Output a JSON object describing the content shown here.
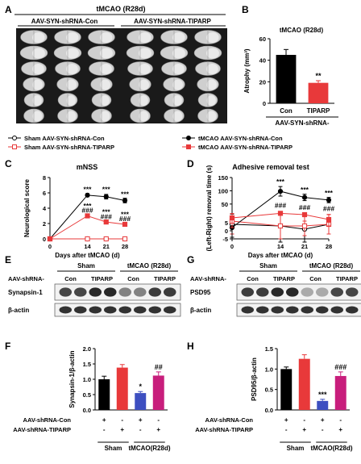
{
  "panels": {
    "A": {
      "letter": "A",
      "title": "tMCAO (R28d)",
      "groups": [
        "AAV-SYN-shRNA-Con",
        "AAV-SYN-shRNA-TIPARP"
      ],
      "rows": 6,
      "cols_per_group": 3
    },
    "E": {
      "letter": "E",
      "row_header": "AAV-shRNA-",
      "groups": [
        "Sham",
        "tMCAO (R28d)"
      ],
      "lanes": [
        "Con",
        "TIPARP",
        "Con",
        "TIPARP"
      ],
      "bands": [
        "Synapsin-1",
        "β-actin"
      ]
    },
    "G": {
      "letter": "G",
      "row_header": "AAV-shRNA-",
      "groups": [
        "Sham",
        "tMCAO (R28d)"
      ],
      "lanes": [
        "Con",
        "TIPARP",
        "Con",
        "TIPARP"
      ],
      "bands": [
        "PSD95",
        "β-actin"
      ]
    }
  },
  "legend": {
    "items": [
      {
        "label": "Sham AAV-SYN-shRNA-Con",
        "color": "#000000",
        "marker": "open-circle"
      },
      {
        "label": "tMCAO AAV-SYN-shRNA-Con",
        "color": "#000000",
        "marker": "filled-circle"
      },
      {
        "label": "Sham AAV-SYN-shRNA-TIPARP",
        "color": "#e8393a",
        "marker": "open-square"
      },
      {
        "label": "tMCAO AAV-SYN-shRNA-TIPARP",
        "color": "#e8393a",
        "marker": "filled-square"
      }
    ]
  },
  "chart_data": [
    {
      "id": "B",
      "letter": "B",
      "type": "bar",
      "title": "tMCAO (R28d)",
      "ylabel": "Atrophy (mm³)",
      "categories": [
        "Con",
        "TIPARP"
      ],
      "values": [
        45,
        19
      ],
      "errors": [
        5,
        2
      ],
      "colors": [
        "#000000",
        "#e8393a"
      ],
      "ylim": [
        0,
        60
      ],
      "yticks": [
        0,
        20,
        40,
        60
      ],
      "group_label": "AAV-SYN-shRNA-",
      "annotations": [
        {
          "category": "TIPARP",
          "text": "**"
        }
      ]
    },
    {
      "id": "C",
      "letter": "C",
      "type": "line",
      "title": "mNSS",
      "ylabel": "Neurological score",
      "xlabel": "Days after tMCAO (d)",
      "x": [
        0,
        14,
        21,
        28
      ],
      "xlim": [
        0,
        28
      ],
      "ylim": [
        0,
        8
      ],
      "yticks": [
        0,
        2,
        4,
        6,
        8
      ],
      "series": [
        {
          "values": [
            0,
            0,
            0,
            0
          ],
          "errors": [
            0,
            0,
            0,
            0
          ],
          "color": "#000000",
          "marker": "open-circle"
        },
        {
          "values": [
            0,
            0,
            0,
            0
          ],
          "errors": [
            0,
            0,
            0,
            0
          ],
          "color": "#e8393a",
          "marker": "open-square"
        },
        {
          "values": [
            0,
            5.7,
            5.5,
            5.0
          ],
          "errors": [
            0,
            0.2,
            0.3,
            0.3
          ],
          "color": "#000000",
          "marker": "filled-circle"
        },
        {
          "values": [
            0,
            3.0,
            2.2,
            1.9
          ],
          "errors": [
            0,
            0.2,
            0.2,
            0.2
          ],
          "color": "#e8393a",
          "marker": "filled-square"
        }
      ],
      "annotations": [
        {
          "x": 14,
          "y": 6.15,
          "text": "***"
        },
        {
          "x": 21,
          "y": 6.15,
          "text": "***"
        },
        {
          "x": 28,
          "y": 5.55,
          "text": "***"
        },
        {
          "x": 14,
          "y": 4.0,
          "text": "***"
        },
        {
          "x": 14,
          "y": 3.4,
          "text": "###"
        },
        {
          "x": 21,
          "y": 3.2,
          "text": "***"
        },
        {
          "x": 21,
          "y": 2.6,
          "text": "###"
        },
        {
          "x": 28,
          "y": 2.9,
          "text": "***"
        },
        {
          "x": 28,
          "y": 2.3,
          "text": "###"
        }
      ]
    },
    {
      "id": "D",
      "letter": "D",
      "type": "line",
      "title": "Adhesive removal test",
      "ylabel": "(Left-Right) removal time (s)",
      "xlabel": "Days after tMCAO (d)",
      "x": [
        0,
        14,
        21,
        28
      ],
      "xlim": [
        0,
        28
      ],
      "ylim": [
        -5,
        150
      ],
      "yticks": [
        -5,
        0,
        5,
        50,
        100,
        150
      ],
      "ytick_labels": [
        "-5",
        "0",
        "5",
        "50",
        "100",
        "150"
      ],
      "series": [
        {
          "values": [
            4,
            3,
            1,
            4
          ],
          "errors": [
            8,
            10,
            8,
            6
          ],
          "color": "#000000",
          "marker": "open-circle"
        },
        {
          "values": [
            6,
            3,
            3,
            4
          ],
          "errors": [
            8,
            8,
            6,
            6
          ],
          "color": "#e8393a",
          "marker": "open-square"
        },
        {
          "values": [
            2,
            98,
            75,
            65
          ],
          "errors": [
            6,
            18,
            12,
            10
          ],
          "color": "#000000",
          "marker": "filled-circle"
        },
        {
          "values": [
            8,
            15,
            10,
            7
          ],
          "errors": [
            6,
            5,
            4,
            4
          ],
          "color": "#e8393a",
          "marker": "filled-square"
        }
      ],
      "annotations": [
        {
          "x": 14,
          "y": 125,
          "text": "***"
        },
        {
          "x": 21,
          "y": 95,
          "text": "***"
        },
        {
          "x": 28,
          "y": 83,
          "text": "***"
        },
        {
          "x": 14,
          "y": 36,
          "text": "###"
        },
        {
          "x": 21,
          "y": 29,
          "text": "###"
        },
        {
          "x": 28,
          "y": 24,
          "text": "###"
        }
      ]
    },
    {
      "id": "F",
      "letter": "F",
      "type": "bar",
      "ylabel": "Synapsin-1/β-actin",
      "values": [
        1.0,
        1.38,
        0.55,
        1.12
      ],
      "errors": [
        0.1,
        0.1,
        0.05,
        0.12
      ],
      "colors": [
        "#000000",
        "#e8393a",
        "#3d4fc0",
        "#c81e7c"
      ],
      "ylim": [
        0,
        2.0
      ],
      "yticks": [
        0,
        0.5,
        1.0,
        1.5,
        2.0
      ],
      "ytick_labels": [
        "0.0",
        "0.5",
        "1.0",
        "1.5",
        "2.0"
      ],
      "annotations": [
        {
          "index": 2,
          "text": "*"
        },
        {
          "index": 3,
          "text": "##"
        }
      ],
      "design_rows": [
        {
          "label": "AAV-shRNA-Con",
          "signs": [
            "+",
            "-",
            "+",
            "-"
          ]
        },
        {
          "label": "AAV-shRNA-TIPARP",
          "signs": [
            "-",
            "+",
            "-",
            "+"
          ]
        }
      ],
      "groups": [
        "Sham",
        "tMCAO(R28d)"
      ]
    },
    {
      "id": "H",
      "letter": "H",
      "type": "bar",
      "ylabel": "PSD95/β-actin",
      "values": [
        1.0,
        1.25,
        0.22,
        0.83
      ],
      "errors": [
        0.05,
        0.1,
        0.04,
        0.1
      ],
      "colors": [
        "#000000",
        "#e8393a",
        "#3d4fc0",
        "#c81e7c"
      ],
      "ylim": [
        0,
        1.5
      ],
      "yticks": [
        0,
        0.5,
        1.0,
        1.5
      ],
      "ytick_labels": [
        "0.0",
        "0.5",
        "1.0",
        "1.5"
      ],
      "annotations": [
        {
          "index": 2,
          "text": "***"
        },
        {
          "index": 3,
          "text": "###"
        }
      ],
      "design_rows": [
        {
          "label": "AAV-shRNA-Con",
          "signs": [
            "+",
            "-",
            "+",
            "-"
          ]
        },
        {
          "label": "AAV-shRNA-TIPARP",
          "signs": [
            "-",
            "+",
            "-",
            "+"
          ]
        }
      ],
      "groups": [
        "Sham",
        "tMCAO(R28d)"
      ]
    }
  ]
}
